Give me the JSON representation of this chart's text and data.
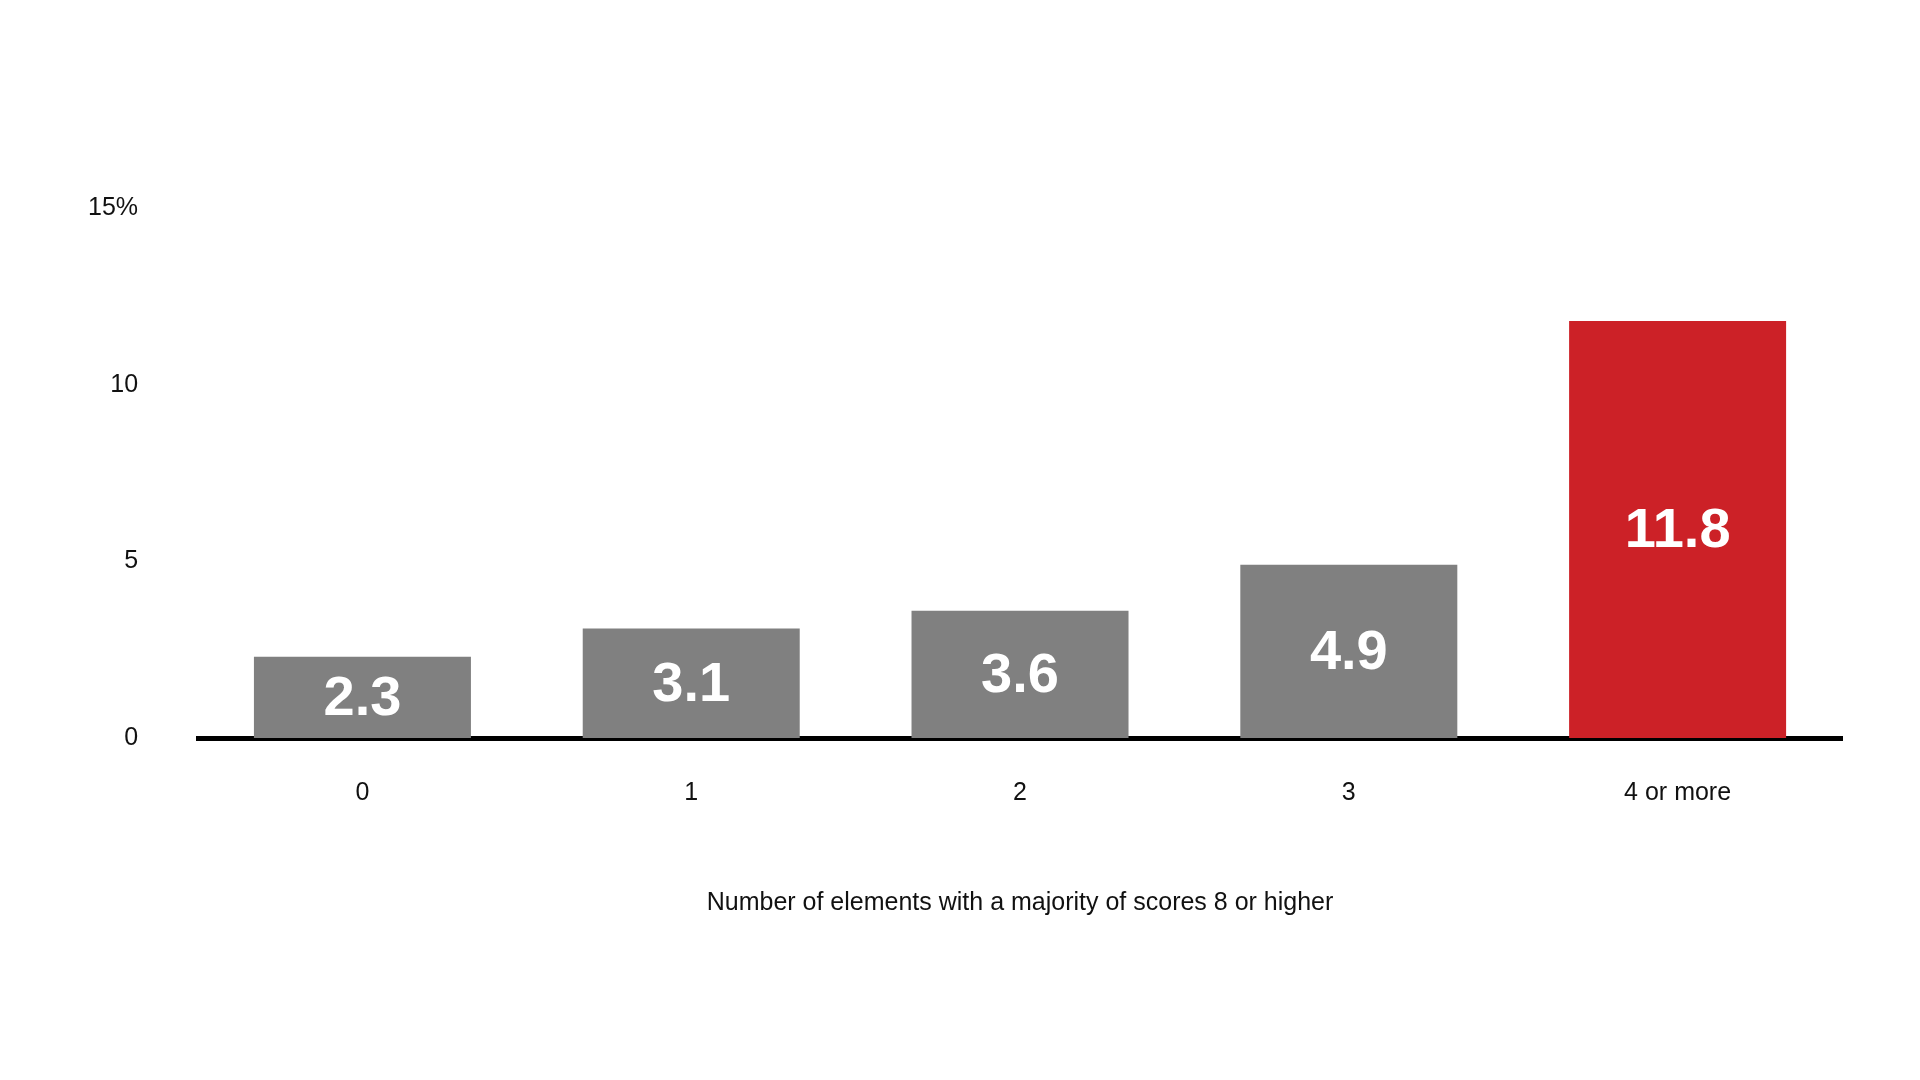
{
  "chart_data": {
    "type": "bar",
    "xlabel": "Number of elements with a majority of scores 8 or higher",
    "categories": [
      "0",
      "1",
      "2",
      "3",
      "4 or more"
    ],
    "values": [
      2.3,
      3.1,
      3.6,
      4.9,
      11.8
    ],
    "colors": [
      "#808080",
      "#808080",
      "#808080",
      "#808080",
      "#cc2127"
    ],
    "ylim": [
      0,
      15
    ],
    "yticks": [
      0,
      5,
      10,
      {
        "value": 15,
        "label": "15%"
      }
    ],
    "grid": false,
    "legend": false,
    "data_labels": true
  }
}
